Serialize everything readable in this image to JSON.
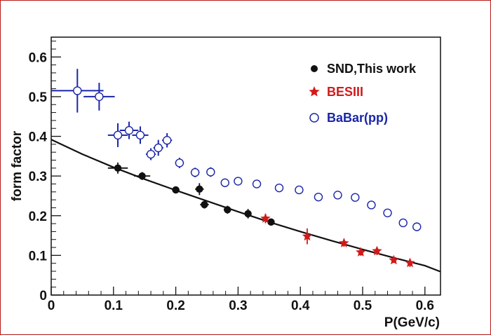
{
  "chart_data": {
    "type": "scatter",
    "title": "",
    "xlabel": "P(GeV/c)",
    "ylabel": "form factor",
    "xlim": [
      0,
      0.625
    ],
    "ylim": [
      0,
      0.65
    ],
    "x_ticks": [
      "0",
      "0.1",
      "0.2",
      "0.3",
      "0.4",
      "0.5",
      "0.6"
    ],
    "y_ticks": [
      "0",
      "0.1",
      "0.2",
      "0.3",
      "0.4",
      "0.5",
      "0.6"
    ],
    "legend_position": "top-right",
    "series": [
      {
        "name": "SND,This work",
        "color": "#111111",
        "marker": "filled-circle",
        "points": [
          {
            "x": 0.107,
            "y": 0.32,
            "xerr": 0.016,
            "yerr": 0.014
          },
          {
            "x": 0.146,
            "y": 0.3,
            "xerr": 0.013,
            "yerr": 0.01
          },
          {
            "x": 0.2,
            "y": 0.265,
            "xerr": 0.006,
            "yerr": 0.007
          },
          {
            "x": 0.238,
            "y": 0.267,
            "xerr": 0.007,
            "yerr": 0.015
          },
          {
            "x": 0.246,
            "y": 0.228,
            "xerr": 0.007,
            "yerr": 0.01
          },
          {
            "x": 0.283,
            "y": 0.215,
            "xerr": 0.006,
            "yerr": 0.01
          },
          {
            "x": 0.316,
            "y": 0.205,
            "xerr": 0.005,
            "yerr": 0.012
          },
          {
            "x": 0.353,
            "y": 0.184,
            "xerr": 0.004,
            "yerr": 0.009
          }
        ]
      },
      {
        "name": "BESIII",
        "color": "#d11a1a",
        "marker": "star",
        "points": [
          {
            "x": 0.344,
            "y": 0.193,
            "yerr": 0.012
          },
          {
            "x": 0.411,
            "y": 0.148,
            "yerr": 0.02
          },
          {
            "x": 0.47,
            "y": 0.131,
            "yerr": 0.009
          },
          {
            "x": 0.497,
            "y": 0.108,
            "yerr": 0.009
          },
          {
            "x": 0.523,
            "y": 0.111,
            "yerr": 0.01
          },
          {
            "x": 0.55,
            "y": 0.088,
            "yerr": 0.007
          },
          {
            "x": 0.576,
            "y": 0.081,
            "yerr": 0.01
          }
        ]
      },
      {
        "name": "BaBar(pp)",
        "color": "#1a26a8",
        "marker": "open-circle",
        "points": [
          {
            "x": 0.042,
            "y": 0.515,
            "xerr": 0.042,
            "yerr": 0.055
          },
          {
            "x": 0.077,
            "y": 0.5,
            "xerr": 0.025,
            "yerr": 0.035
          },
          {
            "x": 0.107,
            "y": 0.403,
            "xerr": 0.016,
            "yerr": 0.03
          },
          {
            "x": 0.125,
            "y": 0.415,
            "xerr": 0.015,
            "yerr": 0.022
          },
          {
            "x": 0.143,
            "y": 0.403,
            "xerr": 0.013,
            "yerr": 0.022
          },
          {
            "x": 0.16,
            "y": 0.355,
            "xerr": 0.008,
            "yerr": 0.015
          },
          {
            "x": 0.172,
            "y": 0.371,
            "xerr": 0.008,
            "yerr": 0.02
          },
          {
            "x": 0.186,
            "y": 0.39,
            "xerr": 0.008,
            "yerr": 0.018
          },
          {
            "x": 0.206,
            "y": 0.333,
            "xerr": 0.007,
            "yerr": 0.013
          },
          {
            "x": 0.231,
            "y": 0.309,
            "xerr": 0.007,
            "yerr": 0.012
          },
          {
            "x": 0.256,
            "y": 0.31,
            "xerr": 0.006,
            "yerr": 0.012
          },
          {
            "x": 0.279,
            "y": 0.283,
            "xerr": 0.006,
            "yerr": 0.011
          },
          {
            "x": 0.3,
            "y": 0.287,
            "xerr": 0.005,
            "yerr": 0.01
          },
          {
            "x": 0.33,
            "y": 0.28,
            "xerr": 0.005,
            "yerr": 0.008
          },
          {
            "x": 0.366,
            "y": 0.27,
            "xerr": 0.004,
            "yerr": 0.008
          },
          {
            "x": 0.398,
            "y": 0.265,
            "xerr": 0.004,
            "yerr": 0.008
          },
          {
            "x": 0.429,
            "y": 0.247,
            "xerr": 0.004,
            "yerr": 0.008
          },
          {
            "x": 0.46,
            "y": 0.252,
            "xerr": 0.004,
            "yerr": 0.009
          },
          {
            "x": 0.488,
            "y": 0.246,
            "xerr": 0.004,
            "yerr": 0.008
          },
          {
            "x": 0.514,
            "y": 0.227,
            "xerr": 0.004,
            "yerr": 0.008
          },
          {
            "x": 0.54,
            "y": 0.207,
            "xerr": 0.004,
            "yerr": 0.008
          },
          {
            "x": 0.565,
            "y": 0.182,
            "xerr": 0.004,
            "yerr": 0.008
          },
          {
            "x": 0.587,
            "y": 0.172,
            "xerr": 0.004,
            "yerr": 0.008
          }
        ]
      },
      {
        "name": "fit",
        "color": "#111111",
        "marker": "line",
        "points": [
          {
            "x": 0.0,
            "y": 0.392
          },
          {
            "x": 0.05,
            "y": 0.355
          },
          {
            "x": 0.1,
            "y": 0.322
          },
          {
            "x": 0.15,
            "y": 0.292
          },
          {
            "x": 0.2,
            "y": 0.264
          },
          {
            "x": 0.25,
            "y": 0.237
          },
          {
            "x": 0.3,
            "y": 0.21
          },
          {
            "x": 0.35,
            "y": 0.184
          },
          {
            "x": 0.4,
            "y": 0.16
          },
          {
            "x": 0.45,
            "y": 0.137
          },
          {
            "x": 0.5,
            "y": 0.115
          },
          {
            "x": 0.55,
            "y": 0.094
          },
          {
            "x": 0.6,
            "y": 0.074
          },
          {
            "x": 0.625,
            "y": 0.059
          }
        ]
      }
    ]
  }
}
